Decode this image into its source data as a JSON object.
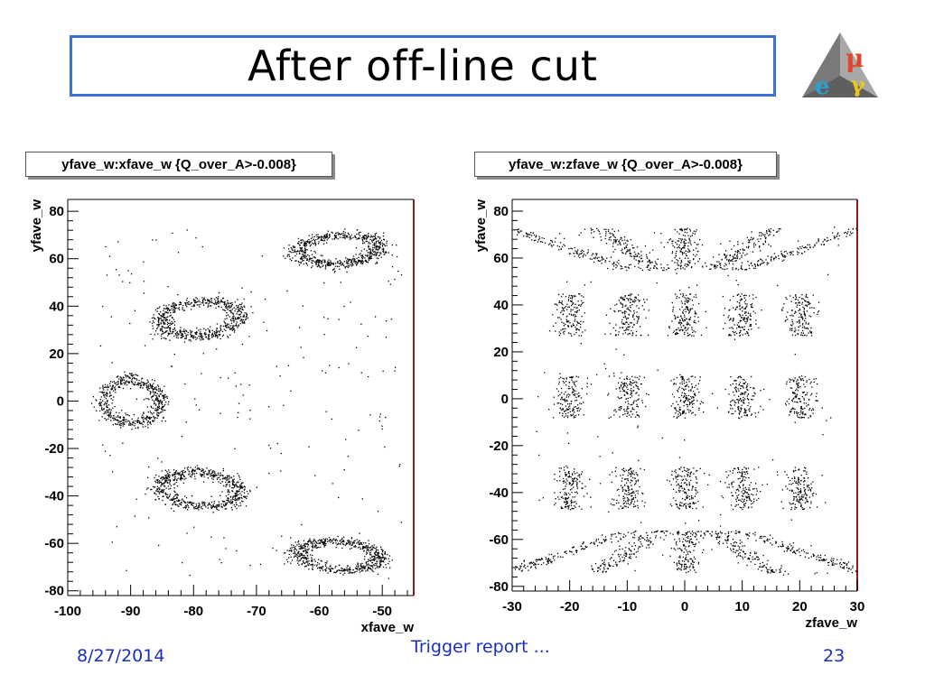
{
  "slide": {
    "title": "After off-line cut",
    "footer_date": "8/27/2014",
    "footer_center": "Trigger report ...",
    "page_number": "23",
    "logo_letters": [
      "μ",
      "e",
      "γ"
    ]
  },
  "colors": {
    "title_border": "#3c6fd6",
    "footer_text": "#1a2fbf",
    "plot_frame_right": "#8b1a1a",
    "point_color": "#000000"
  },
  "chart_data": [
    {
      "type": "scatter",
      "title": "yfave_w:xfave_w {Q_over_A>-0.008}",
      "xlabel": "xfave_w",
      "ylabel": "yfave_w",
      "xlim": [
        -100,
        -45
      ],
      "ylim": [
        -82,
        85
      ],
      "xticks": [
        -100,
        -90,
        -80,
        -70,
        -60,
        -50
      ],
      "yticks": [
        -80,
        -60,
        -40,
        -20,
        0,
        20,
        40,
        60,
        80
      ],
      "grid": false,
      "legend": "none",
      "clusters": [
        {
          "cx": -57,
          "cy": 64,
          "rx": 6.5,
          "ry": 6,
          "tilt": 12,
          "n": 650
        },
        {
          "cx": -79,
          "cy": 35,
          "rx": 6.5,
          "ry": 7,
          "tilt": 18,
          "n": 650
        },
        {
          "cx": -90,
          "cy": 0,
          "rx": 4.5,
          "ry": 9,
          "tilt": 0,
          "n": 550
        },
        {
          "cx": -79,
          "cy": -37,
          "rx": 6.5,
          "ry": 7,
          "tilt": -18,
          "n": 650
        },
        {
          "cx": -57,
          "cy": -65,
          "rx": 6.5,
          "ry": 6,
          "tilt": -12,
          "n": 650
        }
      ]
    },
    {
      "type": "scatter",
      "title": "yfave_w:zfave_w {Q_over_A>-0.008}",
      "xlabel": "zfave_w",
      "ylabel": "yfave_w",
      "xlim": [
        -30,
        30
      ],
      "ylim": [
        -82,
        85
      ],
      "xticks": [
        -30,
        -20,
        -10,
        0,
        10,
        20,
        30
      ],
      "yticks": [
        -80,
        -60,
        -40,
        -20,
        0,
        20,
        40,
        60,
        80
      ],
      "grid": false,
      "legend": "none",
      "columns_z": [
        -20,
        -10,
        0,
        10,
        20
      ],
      "rows_y": [
        64,
        36,
        1,
        -38,
        -65
      ],
      "cluster_half_height": 9
    }
  ]
}
